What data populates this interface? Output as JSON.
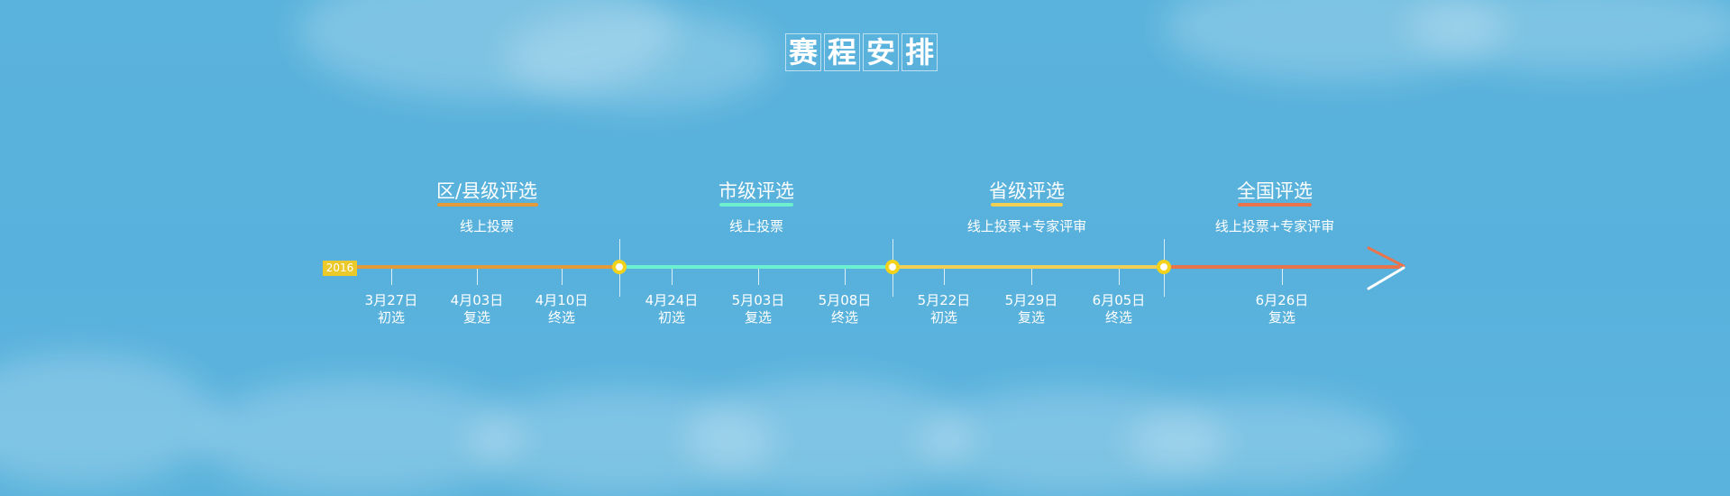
{
  "title_chars": [
    "赛",
    "程",
    "安",
    "排"
  ],
  "year": "2016",
  "stages": [
    {
      "title": "区/县级评选",
      "subtitle": "线上投票",
      "accent": "#e39a3b"
    },
    {
      "title": "市级评选",
      "subtitle": "线上投票",
      "accent": "#6cf0cf"
    },
    {
      "title": "省级评选",
      "subtitle": "线上投票+专家评审",
      "accent": "#f0cf52"
    },
    {
      "title": "全国评选",
      "subtitle": "线上投票+专家评审",
      "accent": "#e9744b"
    }
  ],
  "milestones": [
    {
      "date": "3月27日",
      "phase": "初选"
    },
    {
      "date": "4月03日",
      "phase": "复选"
    },
    {
      "date": "4月10日",
      "phase": "终选"
    },
    {
      "date": "4月24日",
      "phase": "初选"
    },
    {
      "date": "5月03日",
      "phase": "复选"
    },
    {
      "date": "5月08日",
      "phase": "终选"
    },
    {
      "date": "5月22日",
      "phase": "初选"
    },
    {
      "date": "5月29日",
      "phase": "复选"
    },
    {
      "date": "6月05日",
      "phase": "终选"
    },
    {
      "date": "6月26日",
      "phase": "复选"
    }
  ],
  "colors": {
    "background": "#58b1dc",
    "node_ring": "#f2d21a",
    "arrow_orange": "#e9744b"
  }
}
